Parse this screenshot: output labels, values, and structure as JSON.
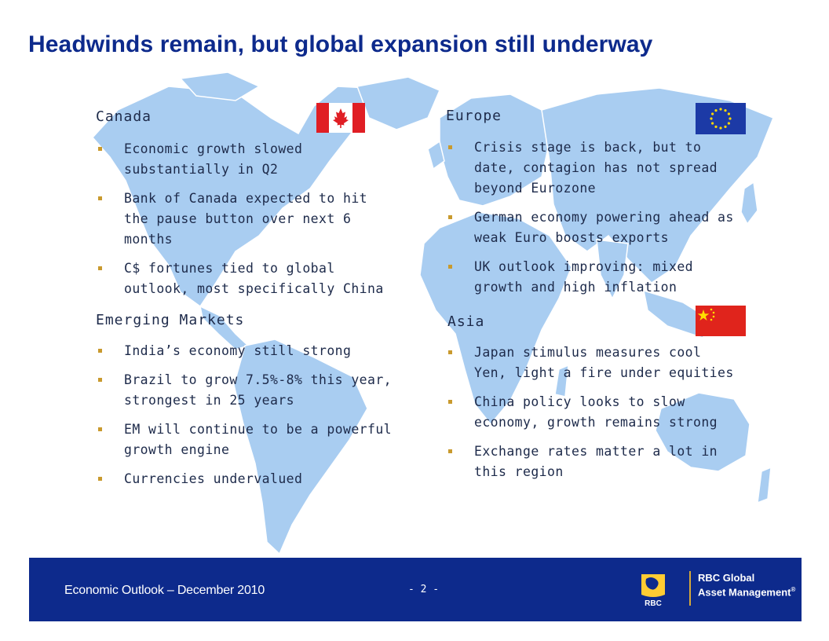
{
  "title": "Headwinds remain, but global expansion still underway",
  "regions": {
    "canada": {
      "heading": "Canada",
      "bullets": [
        "Economic growth slowed substantially in Q2",
        "Bank of Canada expected to hit the pause button over next 6 months",
        "C$ fortunes tied to global outlook, most specifically China"
      ],
      "flag_icon": "canada-flag-icon"
    },
    "europe": {
      "heading": "Europe",
      "bullets": [
        "Crisis stage is back, but to date, contagion has not spread beyond Eurozone",
        "German economy powering ahead as weak Euro boosts exports",
        "UK outlook improving: mixed growth and high inflation"
      ],
      "flag_icon": "eu-flag-icon"
    },
    "emerging": {
      "heading": "Emerging Markets",
      "bullets": [
        "India’s economy still strong",
        "Brazil to grow 7.5%-8% this year, strongest in 25 years",
        "EM will continue to be a powerful growth engine",
        "Currencies undervalued"
      ]
    },
    "asia": {
      "heading": "Asia",
      "bullets": [
        "Japan stimulus measures cool Yen, light a fire under equities",
        "China policy looks to slow economy, growth remains strong",
        "Exchange rates matter a lot in this region"
      ],
      "flag_icon": "china-flag-icon"
    }
  },
  "footer": {
    "text": "Economic Outlook – December 2010",
    "page": "- 2 -",
    "brand_line1": "RBC Global",
    "brand_line2": "Asset Management",
    "brand_mark": "®",
    "logo_text": "RBC"
  },
  "colors": {
    "title": "#0d2a8c",
    "footer_bg": "#0d2a8c",
    "map": "#a9cdf1",
    "bullet": "#c99a2e"
  }
}
